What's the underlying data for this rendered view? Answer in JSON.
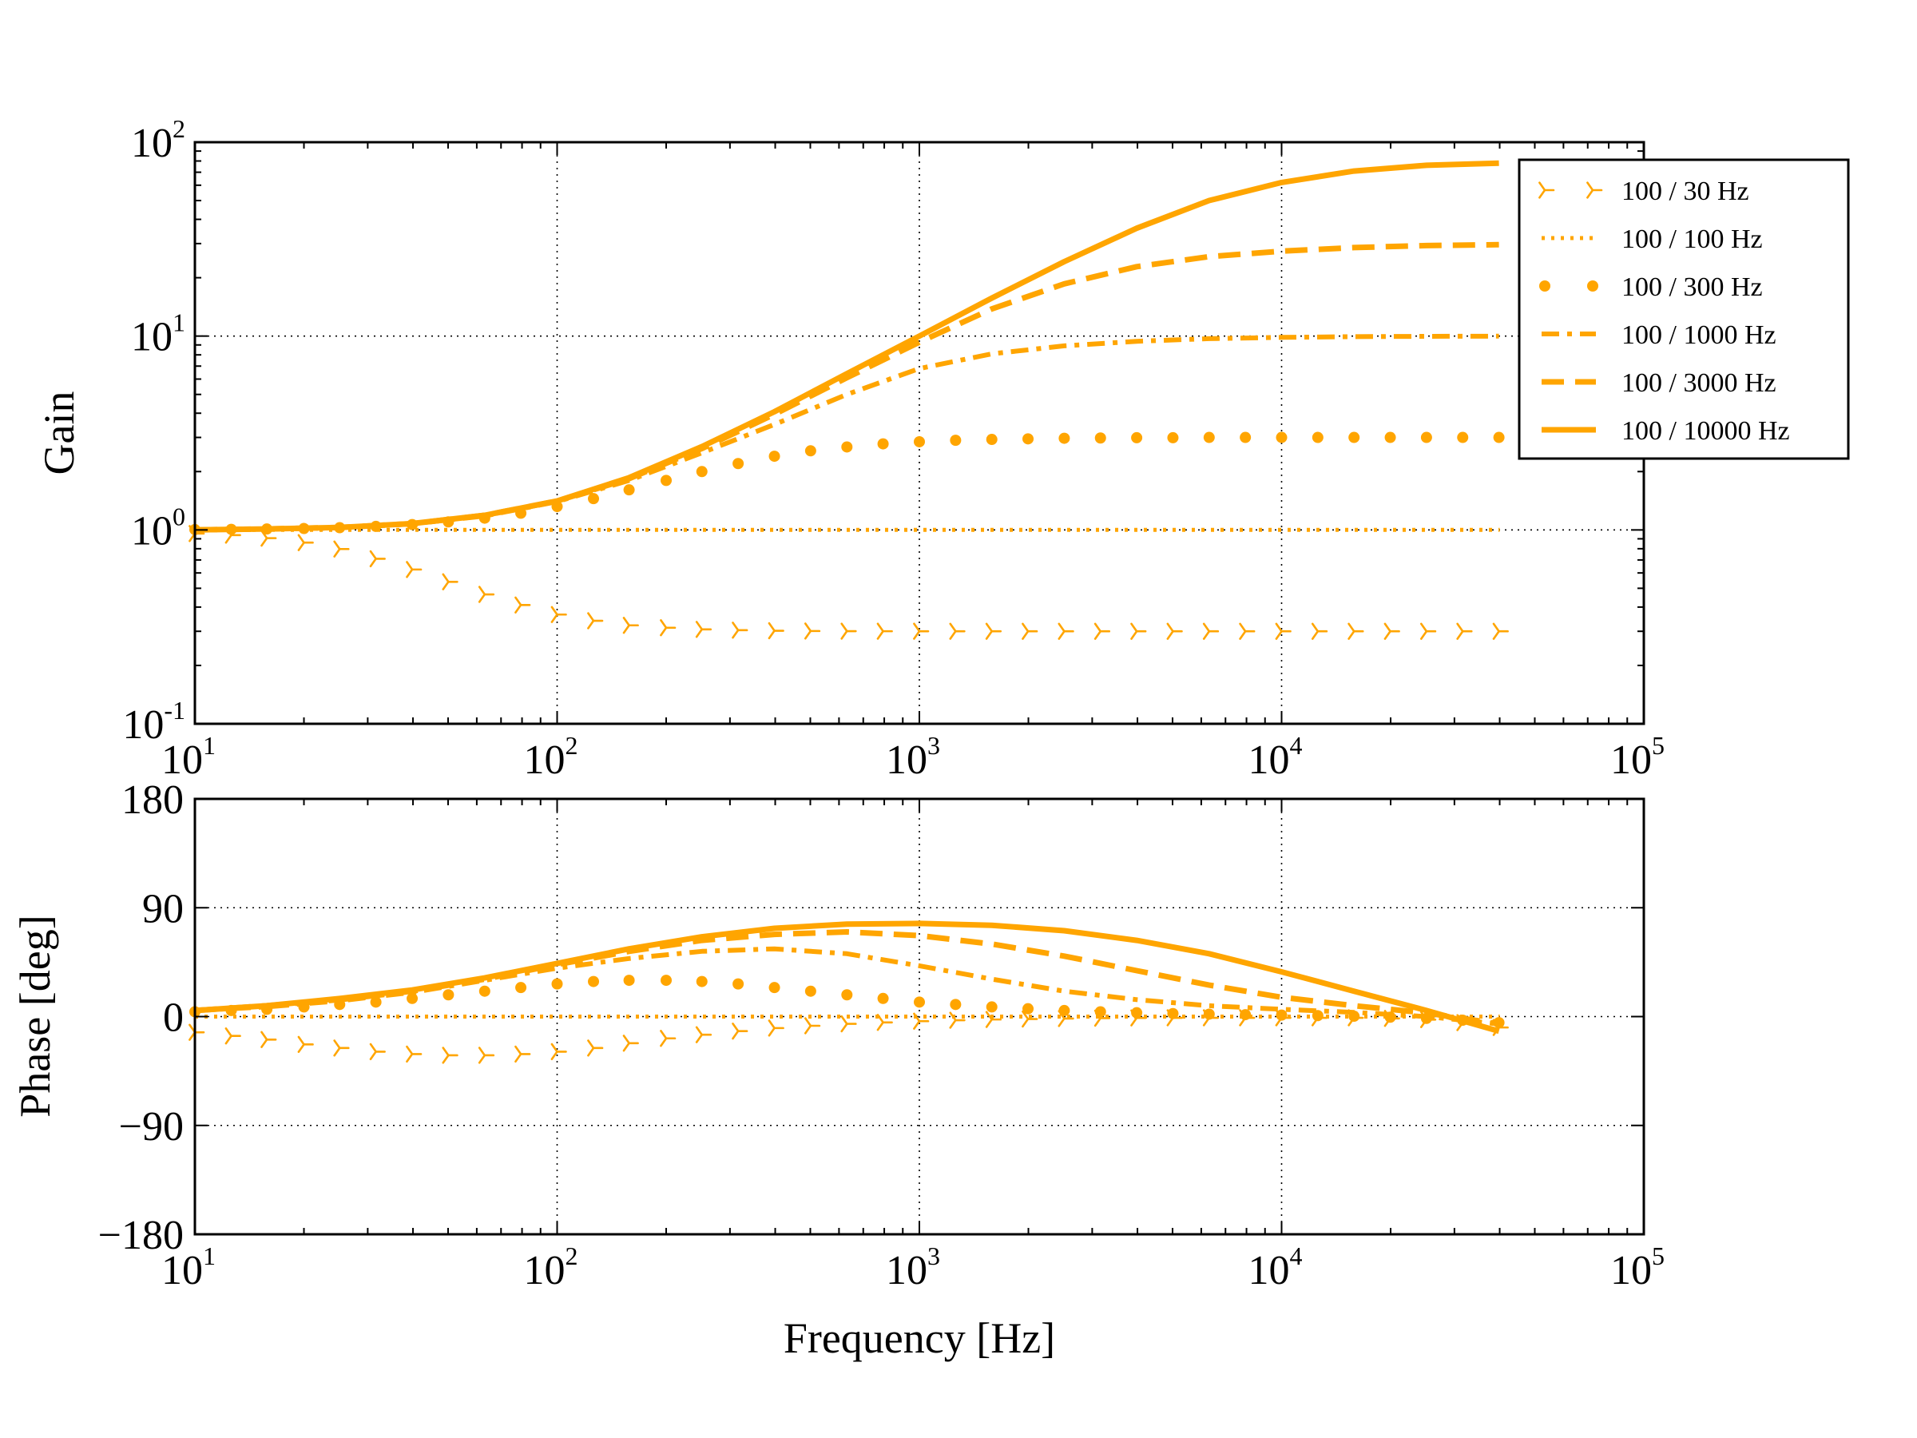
{
  "chart_data": [
    {
      "type": "line",
      "panel": "gain",
      "title": "",
      "xlabel": "",
      "ylabel": "Gain",
      "xscale": "log",
      "yscale": "log",
      "xlim": [
        10,
        100000
      ],
      "ylim": [
        0.1,
        100
      ],
      "grid": true,
      "x_ticks": [
        {
          "base": "10",
          "exp": "1"
        },
        {
          "base": "10",
          "exp": "2"
        },
        {
          "base": "10",
          "exp": "3"
        },
        {
          "base": "10",
          "exp": "4"
        },
        {
          "base": "10",
          "exp": "5"
        }
      ],
      "y_ticks": [
        {
          "base": "10",
          "exp": "-1"
        },
        {
          "base": "10",
          "exp": "0"
        },
        {
          "base": "10",
          "exp": "1"
        },
        {
          "base": "10",
          "exp": "2"
        }
      ],
      "legend_location": "top-right",
      "series": [
        {
          "name": "100 / 30 Hz",
          "style": "tri-marker",
          "x": [
            10,
            12.6,
            15.8,
            20,
            25.1,
            31.6,
            39.8,
            50.1,
            63.1,
            79.4,
            100,
            126,
            158,
            200,
            251,
            316,
            398,
            501,
            631,
            794,
            1000,
            1259,
            1585,
            1995,
            2512,
            3162,
            3981,
            5012,
            6310,
            7943,
            10000,
            12589,
            15849,
            19953,
            25119,
            31623,
            39811
          ],
          "y": [
            0.958,
            0.94,
            0.907,
            0.86,
            0.797,
            0.71,
            0.625,
            0.54,
            0.465,
            0.41,
            0.366,
            0.34,
            0.322,
            0.313,
            0.307,
            0.304,
            0.302,
            0.301,
            0.3005,
            0.3003,
            0.3002,
            0.3001,
            0.3001,
            0.3,
            0.3,
            0.3,
            0.3,
            0.3,
            0.3,
            0.3,
            0.3,
            0.3,
            0.3,
            0.3,
            0.3,
            0.3,
            0.3
          ]
        },
        {
          "name": "100 / 100 Hz",
          "style": "dotted",
          "x": [
            10,
            100,
            1000,
            10000,
            40000
          ],
          "y": [
            1,
            1,
            1,
            1,
            1
          ]
        },
        {
          "name": "100 / 300 Hz",
          "style": "circle-marker",
          "x": [
            10,
            12.6,
            15.8,
            20,
            25.1,
            31.6,
            39.8,
            50.1,
            63.1,
            79.4,
            100,
            126,
            158,
            200,
            251,
            316,
            398,
            501,
            631,
            794,
            1000,
            1259,
            1585,
            1995,
            2512,
            3162,
            3981,
            5012,
            6310,
            7943,
            10000,
            12589,
            15849,
            19953,
            25119,
            31623,
            39811
          ],
          "y": [
            1.004,
            1.007,
            1.011,
            1.017,
            1.027,
            1.043,
            1.066,
            1.1,
            1.15,
            1.22,
            1.32,
            1.45,
            1.61,
            1.8,
            2.0,
            2.2,
            2.4,
            2.56,
            2.68,
            2.78,
            2.85,
            2.9,
            2.93,
            2.95,
            2.97,
            2.98,
            2.99,
            2.99,
            3.0,
            3.0,
            3.0,
            3.0,
            3.0,
            3.0,
            3.0,
            3.0,
            3.0
          ]
        },
        {
          "name": "100 / 1000 Hz",
          "style": "dash-dot",
          "x": [
            10,
            15.8,
            25.1,
            39.8,
            63.1,
            100,
            158,
            251,
            398,
            631,
            1000,
            1585,
            2512,
            3981,
            6310,
            10000,
            15849,
            25119,
            39811
          ],
          "y": [
            1.0,
            1.012,
            1.03,
            1.075,
            1.18,
            1.4,
            1.8,
            2.5,
            3.5,
            5.0,
            6.8,
            8.1,
            8.9,
            9.4,
            9.7,
            9.85,
            9.93,
            9.97,
            9.99
          ]
        },
        {
          "name": "100 / 3000 Hz",
          "style": "dashed",
          "x": [
            10,
            15.8,
            25.1,
            39.8,
            63.1,
            100,
            158,
            251,
            398,
            631,
            1000,
            1585,
            2512,
            3981,
            6310,
            10000,
            15849,
            25119,
            39811
          ],
          "y": [
            1.0,
            1.012,
            1.03,
            1.077,
            1.19,
            1.41,
            1.84,
            2.63,
            3.95,
            6.1,
            9.3,
            13.8,
            18.6,
            22.8,
            25.7,
            27.4,
            28.6,
            29.3,
            29.6
          ]
        },
        {
          "name": "100 / 10000 Hz",
          "style": "solid",
          "x": [
            10,
            15.8,
            25.1,
            39.8,
            63.1,
            100,
            158,
            251,
            398,
            631,
            1000,
            1585,
            2512,
            3981,
            6310,
            10000,
            15849,
            25119,
            39811
          ],
          "y": [
            1.0,
            1.012,
            1.03,
            1.078,
            1.19,
            1.41,
            1.86,
            2.69,
            4.07,
            6.4,
            10.0,
            15.7,
            24.2,
            36.0,
            50.0,
            62.0,
            71.0,
            76.0,
            78.0
          ]
        }
      ]
    },
    {
      "type": "line",
      "panel": "phase",
      "title": "",
      "xlabel": "Frequency [Hz]",
      "ylabel": "Phase [deg]",
      "xscale": "log",
      "yscale": "linear",
      "xlim": [
        10,
        100000
      ],
      "ylim": [
        -180,
        180
      ],
      "grid": true,
      "x_ticks": [
        {
          "base": "10",
          "exp": "1"
        },
        {
          "base": "10",
          "exp": "2"
        },
        {
          "base": "10",
          "exp": "3"
        },
        {
          "base": "10",
          "exp": "4"
        },
        {
          "base": "10",
          "exp": "5"
        }
      ],
      "y_ticks": [
        "−180",
        "−90",
        "0",
        "90",
        "180"
      ],
      "y_tick_values": [
        -180,
        -90,
        0,
        90,
        180
      ],
      "series": [
        {
          "name": "100 / 30 Hz",
          "style": "tri-marker",
          "x": [
            10,
            12.6,
            15.8,
            20,
            25.1,
            31.6,
            39.8,
            50.1,
            63.1,
            79.4,
            100,
            126,
            158,
            200,
            251,
            316,
            398,
            501,
            631,
            794,
            1000,
            1259,
            1585,
            1995,
            2512,
            3162,
            3981,
            5012,
            6310,
            7943,
            10000,
            12589,
            15849,
            19953,
            25119,
            31623,
            39811
          ],
          "y": [
            -13,
            -16,
            -19,
            -23,
            -26,
            -29,
            -31,
            -32,
            -32,
            -31,
            -29,
            -26,
            -22,
            -18,
            -15,
            -12,
            -9.5,
            -7.6,
            -6,
            -4.8,
            -3.8,
            -3,
            -2.4,
            -2,
            -1.6,
            -1.3,
            -1.1,
            -1,
            -1,
            -1,
            -1,
            -1,
            -1,
            -1.5,
            -2.5,
            -5,
            -9
          ]
        },
        {
          "name": "100 / 100 Hz",
          "style": "dotted",
          "x": [
            10,
            100,
            1000,
            10000,
            40000
          ],
          "y": [
            0,
            0,
            0,
            0,
            0
          ]
        },
        {
          "name": "100 / 300 Hz",
          "style": "circle-marker",
          "x": [
            10,
            12.6,
            15.8,
            20,
            25.1,
            31.6,
            39.8,
            50.1,
            63.1,
            79.4,
            100,
            126,
            158,
            200,
            251,
            316,
            398,
            501,
            631,
            794,
            1000,
            1259,
            1585,
            1995,
            2512,
            3162,
            3981,
            5012,
            6310,
            7943,
            10000,
            12589,
            15849,
            19953,
            25119,
            31623,
            39811
          ],
          "y": [
            4,
            5,
            6,
            8,
            10,
            12,
            15,
            18,
            21,
            24,
            27,
            29,
            30,
            30,
            29,
            27,
            24,
            21,
            18,
            15,
            12,
            10,
            8,
            6.5,
            5,
            4,
            3.2,
            2.5,
            2,
            1.6,
            1.2,
            0.8,
            0.3,
            -0.5,
            -1.5,
            -3,
            -5
          ]
        },
        {
          "name": "100 / 1000 Hz",
          "style": "dash-dot",
          "x": [
            10,
            15.8,
            25.1,
            39.8,
            63.1,
            100,
            158,
            251,
            398,
            631,
            1000,
            1585,
            2512,
            3981,
            6310,
            10000,
            15849,
            25119,
            39811
          ],
          "y": [
            5,
            8,
            13,
            20,
            30,
            40,
            48,
            54,
            56,
            52,
            42,
            31,
            21,
            14,
            9,
            6,
            3.5,
            0,
            -6
          ]
        },
        {
          "name": "100 / 3000 Hz",
          "style": "dashed",
          "x": [
            10,
            15.8,
            25.1,
            39.8,
            63.1,
            100,
            158,
            251,
            398,
            631,
            1000,
            1585,
            2512,
            3981,
            6310,
            10000,
            15849,
            25119,
            39811
          ],
          "y": [
            5,
            9,
            14,
            21,
            31,
            43,
            54,
            63,
            68,
            70,
            67,
            60,
            50,
            38,
            26,
            16,
            9,
            3,
            -6
          ]
        },
        {
          "name": "100 / 10000 Hz",
          "style": "solid",
          "x": [
            10,
            15.8,
            25.1,
            39.8,
            63.1,
            100,
            158,
            251,
            398,
            631,
            1000,
            1585,
            2512,
            3981,
            6310,
            10000,
            15849,
            25119,
            39811
          ],
          "y": [
            5,
            9,
            15,
            22,
            32,
            44,
            56,
            66,
            73,
            76.5,
            77,
            75.5,
            71,
            63,
            52,
            37,
            21,
            5,
            -12
          ]
        }
      ]
    }
  ],
  "colors": {
    "series": "#ffa500",
    "axes": "#000000",
    "grid": "#000000",
    "background": "#ffffff"
  }
}
